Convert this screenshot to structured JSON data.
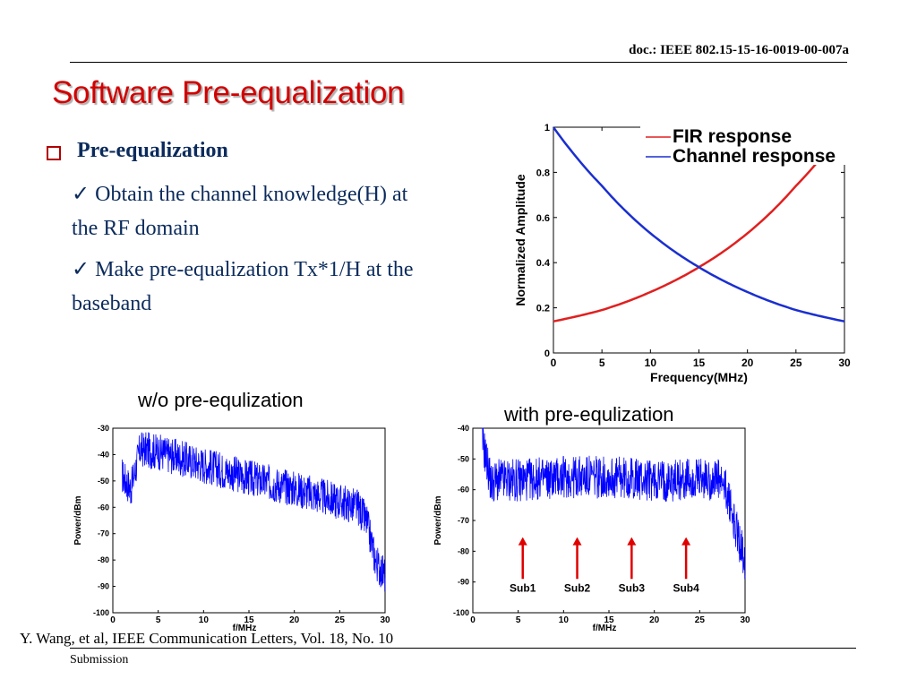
{
  "header": {
    "doc_id": "doc.: IEEE 802.15-15-16-0019-00-007a"
  },
  "slide": {
    "title": "Software Pre-equalization",
    "bullet": "Pre-equalization",
    "items": [
      {
        "check": "✓",
        "line1": "Obtain the channel knowledge(H) at",
        "line2": "the RF domain"
      },
      {
        "check": "✓",
        "line1": "Make pre-equalization Tx*1/H at the",
        "line2": "baseband"
      }
    ],
    "caption_left": "w/o pre-equlization",
    "caption_right": "with pre-equlization"
  },
  "footer": {
    "citation": "Y. Wang, et al, IEEE Communication Letters, Vol. 18, No. 10",
    "submission": "Submission"
  },
  "colors": {
    "title": "#d20000",
    "fir": "#e02020",
    "channel": "#1a2fd0",
    "spectrum": "#0000ff",
    "arrow": "#e00000",
    "body_text": "#0b2b5c"
  },
  "chart_data": [
    {
      "type": "line",
      "xlabel": "Frequency(MHz)",
      "ylabel": "Normalized Amplitude",
      "xlim": [
        0,
        30
      ],
      "ylim": [
        0,
        1
      ],
      "xticks": [
        "0",
        "5",
        "10",
        "15",
        "20",
        "25",
        "30"
      ],
      "yticks": [
        "0",
        "0.2",
        "0.4",
        "0.6",
        "0.8",
        "1"
      ],
      "legend": "top-right",
      "series": [
        {
          "name": "FIR response",
          "x": [
            0,
            5,
            10,
            15,
            20,
            25,
            30
          ],
          "values": [
            0.14,
            0.19,
            0.27,
            0.38,
            0.53,
            0.74,
            1.0
          ],
          "color": "#e02020"
        },
        {
          "name": "Channel response",
          "x": [
            0,
            5,
            10,
            15,
            20,
            25,
            30
          ],
          "values": [
            1.0,
            0.74,
            0.53,
            0.38,
            0.27,
            0.19,
            0.14
          ],
          "color": "#1a2fd0"
        }
      ]
    },
    {
      "type": "line",
      "xlabel": "f/MHz",
      "ylabel": "Power/dBm",
      "xlim": [
        0,
        30
      ],
      "ylim": [
        -100,
        -30
      ],
      "xticks": [
        "0",
        "5",
        "10",
        "15",
        "20",
        "25",
        "30"
      ],
      "yticks": [
        "-30",
        "-40",
        "-50",
        "-60",
        "-70",
        "-80",
        "-90",
        "-100"
      ],
      "series": [
        {
          "x": [
            1,
            2,
            3,
            5,
            10,
            15,
            20,
            25,
            27,
            28,
            29,
            30
          ],
          "values": [
            -50,
            -55,
            -40,
            -41,
            -46,
            -51,
            -55,
            -60,
            -62,
            -68,
            -83,
            -88
          ]
        }
      ]
    },
    {
      "type": "line",
      "xlabel": "f/MHz",
      "ylabel": "Power/dBm",
      "xlim": [
        0,
        30
      ],
      "ylim": [
        -100,
        -40
      ],
      "xticks": [
        "0",
        "5",
        "10",
        "15",
        "20",
        "25",
        "30"
      ],
      "yticks": [
        "-40",
        "-50",
        "-60",
        "-70",
        "-80",
        "-90",
        "-100"
      ],
      "annotations": [
        "Sub1",
        "Sub2",
        "Sub3",
        "Sub4"
      ],
      "annotation_x": [
        5.5,
        11.5,
        17.5,
        23.5
      ],
      "series": [
        {
          "x": [
            1,
            2,
            3,
            5,
            10,
            15,
            20,
            25,
            27,
            28,
            29,
            30
          ],
          "values": [
            -45,
            -60,
            -59,
            -59,
            -58,
            -58,
            -59,
            -59,
            -59,
            -63,
            -75,
            -85
          ]
        }
      ]
    }
  ]
}
